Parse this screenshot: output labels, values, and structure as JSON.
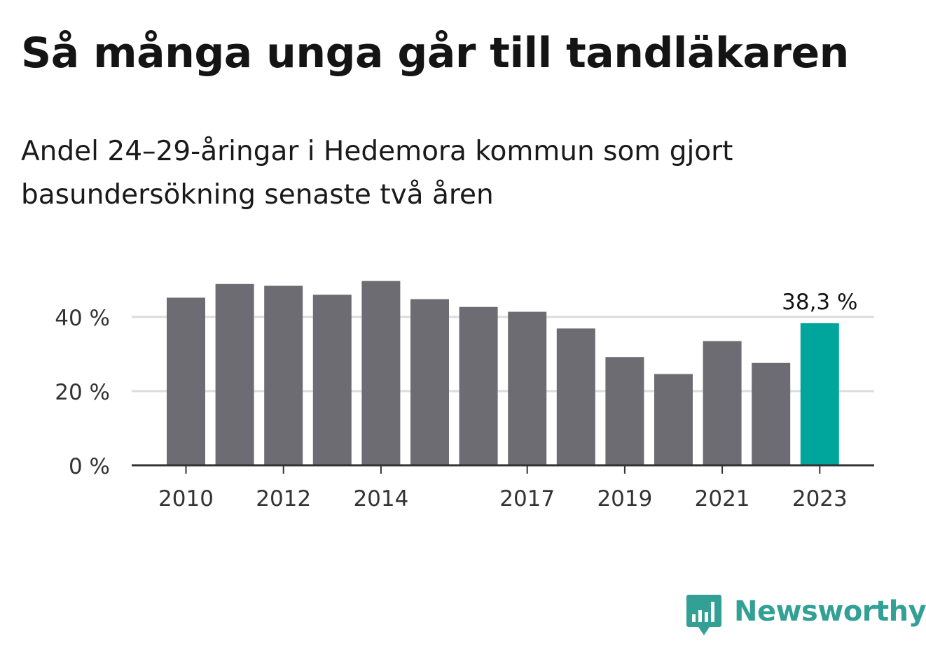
{
  "title": "Så många unga går till tandläkaren",
  "subtitle": "Andel 24–29-åringar i Hedemora kommun som gjort basundersökning senaste två åren",
  "brand": {
    "name": "Newsworthy",
    "icon": "newsworthy-logo-icon",
    "color": "#33a096"
  },
  "colors": {
    "bar": "#6d6c72",
    "highlight": "#00a69c",
    "grid": "#dcdcdc",
    "axis": "#333333"
  },
  "chart_data": {
    "type": "bar",
    "categories": [
      "2010",
      "2011",
      "2012",
      "2013",
      "2014",
      "2015",
      "2016",
      "2017",
      "2018",
      "2019",
      "2020",
      "2021",
      "2022",
      "2023"
    ],
    "x_tick_labels": [
      "2010",
      "2012",
      "2014",
      "2017",
      "2019",
      "2021",
      "2023"
    ],
    "values": [
      45.2,
      48.9,
      48.4,
      46.0,
      49.7,
      44.8,
      42.7,
      41.4,
      36.9,
      29.2,
      24.6,
      33.5,
      27.6,
      38.3
    ],
    "highlight_index": 13,
    "data_labels": [
      {
        "category": "2023",
        "text": "38,3 %"
      }
    ],
    "y_ticks": [
      {
        "value": 0,
        "label": "0 %"
      },
      {
        "value": 20,
        "label": "20 %"
      },
      {
        "value": 40,
        "label": "40 %"
      }
    ],
    "ylim": [
      0,
      50
    ],
    "grid": true,
    "legend": "none"
  }
}
